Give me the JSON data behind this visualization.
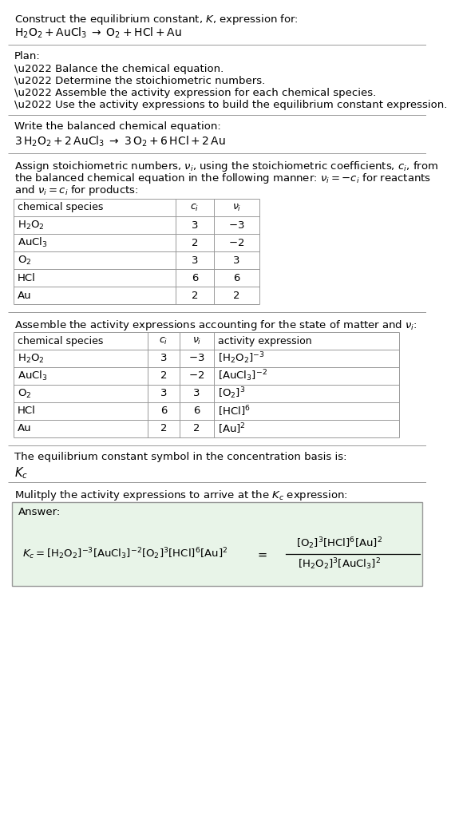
{
  "title_line1": "Construct the equilibrium constant, $K$, expression for:",
  "title_line2": "$\\mathrm{H_2O_2 + AuCl_3 \\;\\rightarrow\\; O_2 + HCl + Au}$",
  "plan_header": "Plan:",
  "plan_bullets": [
    "\\u2022 Balance the chemical equation.",
    "\\u2022 Determine the stoichiometric numbers.",
    "\\u2022 Assemble the activity expression for each chemical species.",
    "\\u2022 Use the activity expressions to build the equilibrium constant expression."
  ],
  "balanced_header": "Write the balanced chemical equation:",
  "balanced_eq": "$\\mathrm{3\\,H_2O_2 + 2\\,AuCl_3 \\;\\rightarrow\\; 3\\,O_2 + 6\\,HCl + 2\\,Au}$",
  "stoich_lines": [
    "Assign stoichiometric numbers, $\\nu_i$, using the stoichiometric coefficients, $c_i$, from",
    "the balanced chemical equation in the following manner: $\\nu_i = -c_i$ for reactants",
    "and $\\nu_i = c_i$ for products:"
  ],
  "table1_headers": [
    "chemical species",
    "$c_i$",
    "$\\nu_i$"
  ],
  "table1_rows": [
    [
      "$\\mathrm{H_2O_2}$",
      "3",
      "$-3$"
    ],
    [
      "$\\mathrm{AuCl_3}$",
      "2",
      "$-2$"
    ],
    [
      "$\\mathrm{O_2}$",
      "3",
      "3"
    ],
    [
      "HCl",
      "6",
      "6"
    ],
    [
      "Au",
      "2",
      "2"
    ]
  ],
  "activity_header": "Assemble the activity expressions accounting for the state of matter and $\\nu_i$:",
  "table2_headers": [
    "chemical species",
    "$c_i$",
    "$\\nu_i$",
    "activity expression"
  ],
  "table2_rows": [
    [
      "$\\mathrm{H_2O_2}$",
      "3",
      "$-3$",
      "$[\\mathrm{H_2O_2}]^{-3}$"
    ],
    [
      "$\\mathrm{AuCl_3}$",
      "2",
      "$-2$",
      "$[\\mathrm{AuCl_3}]^{-2}$"
    ],
    [
      "$\\mathrm{O_2}$",
      "3",
      "3",
      "$[\\mathrm{O_2}]^{3}$"
    ],
    [
      "HCl",
      "6",
      "6",
      "$[\\mathrm{HCl}]^{6}$"
    ],
    [
      "Au",
      "2",
      "2",
      "$[\\mathrm{Au}]^{2}$"
    ]
  ],
  "kc_header": "The equilibrium constant symbol in the concentration basis is:",
  "kc_symbol": "$K_c$",
  "multiply_header": "Mulitply the activity expressions to arrive at the $K_c$ expression:",
  "answer_label": "Answer:",
  "bg_color": "#ffffff",
  "answer_box_color": "#e8f4e8",
  "table_line_color": "#999999",
  "text_color": "#000000",
  "font_size": 9.5
}
